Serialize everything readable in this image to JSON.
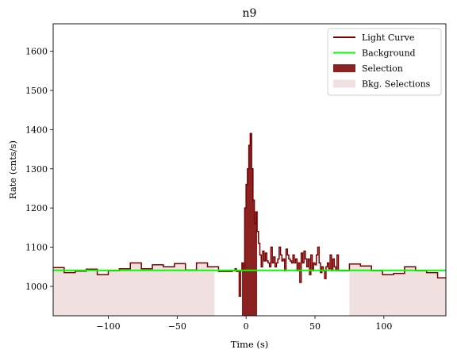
{
  "chart_data": {
    "type": "line",
    "title": "n9",
    "xlabel": "Time (s)",
    "ylabel": "Rate (cnts/s)",
    "xlim": [
      -140,
      145
    ],
    "ylim": [
      925,
      1670
    ],
    "xticks": [
      -100,
      -50,
      0,
      50,
      100
    ],
    "xtick_labels": [
      "−100",
      "−50",
      "0",
      "50",
      "100"
    ],
    "yticks": [
      1000,
      1100,
      1200,
      1300,
      1400,
      1500,
      1600
    ],
    "ytick_labels": [
      "1000",
      "1100",
      "1200",
      "1300",
      "1400",
      "1500",
      "1600"
    ],
    "grid": false,
    "legend_position": "top-right",
    "colors": {
      "light_curve": "#7a0000",
      "background": "#00ff00",
      "selection": "#8b2222",
      "bkg_selection": "#f0e0e0"
    },
    "legend": [
      {
        "label": "Light Curve",
        "kind": "line",
        "color": "#7a0000"
      },
      {
        "label": "Background",
        "kind": "line",
        "color": "#00ff00"
      },
      {
        "label": "Selection",
        "kind": "patch",
        "color": "#8b2222"
      },
      {
        "label": "Bkg. Selections",
        "kind": "patch",
        "color": "#f0e0e0"
      }
    ],
    "bkg_selections": [
      [
        -140,
        -23
      ],
      [
        75,
        145
      ]
    ],
    "selection": [
      -3,
      8
    ],
    "background_level": 1041,
    "light_curve": [
      [
        -140,
        1048
      ],
      [
        -132,
        1035
      ],
      [
        -124,
        1039
      ],
      [
        -116,
        1044
      ],
      [
        -108,
        1030
      ],
      [
        -100,
        1040
      ],
      [
        -92,
        1045
      ],
      [
        -84,
        1060
      ],
      [
        -76,
        1045
      ],
      [
        -68,
        1055
      ],
      [
        -60,
        1050
      ],
      [
        -52,
        1058
      ],
      [
        -44,
        1042
      ],
      [
        -36,
        1060
      ],
      [
        -28,
        1050
      ],
      [
        -20,
        1038
      ],
      [
        -12,
        1038
      ],
      [
        -10,
        1040
      ],
      [
        -8,
        1045
      ],
      [
        -7,
        1038
      ],
      [
        -6,
        1040
      ],
      [
        -5,
        975
      ],
      [
        -4,
        1040
      ],
      [
        -3,
        1060
      ],
      [
        -2,
        1040
      ],
      [
        -1,
        1200
      ],
      [
        0,
        1260
      ],
      [
        1,
        1300
      ],
      [
        2,
        1360
      ],
      [
        3,
        1390
      ],
      [
        4,
        1300
      ],
      [
        5,
        1220
      ],
      [
        6,
        1160
      ],
      [
        7,
        1190
      ],
      [
        8,
        1140
      ],
      [
        9,
        1110
      ],
      [
        10,
        1080
      ],
      [
        11,
        1050
      ],
      [
        12,
        1090
      ],
      [
        13,
        1065
      ],
      [
        14,
        1085
      ],
      [
        15,
        1065
      ],
      [
        16,
        1060
      ],
      [
        17,
        1050
      ],
      [
        18,
        1100
      ],
      [
        19,
        1060
      ],
      [
        20,
        1075
      ],
      [
        21,
        1050
      ],
      [
        22,
        1060
      ],
      [
        23,
        1070
      ],
      [
        24,
        1100
      ],
      [
        25,
        1080
      ],
      [
        26,
        1065
      ],
      [
        27,
        1070
      ],
      [
        28,
        1040
      ],
      [
        29,
        1095
      ],
      [
        30,
        1080
      ],
      [
        31,
        1070
      ],
      [
        32,
        1065
      ],
      [
        33,
        1060
      ],
      [
        34,
        1080
      ],
      [
        35,
        1060
      ],
      [
        36,
        1070
      ],
      [
        37,
        1040
      ],
      [
        38,
        1060
      ],
      [
        39,
        1010
      ],
      [
        40,
        1085
      ],
      [
        41,
        1060
      ],
      [
        42,
        1090
      ],
      [
        43,
        1070
      ],
      [
        44,
        1050
      ],
      [
        45,
        1070
      ],
      [
        46,
        1030
      ],
      [
        47,
        1080
      ],
      [
        48,
        1040
      ],
      [
        49,
        1060
      ],
      [
        50,
        1055
      ],
      [
        51,
        1080
      ],
      [
        52,
        1100
      ],
      [
        53,
        1060
      ],
      [
        54,
        1035
      ],
      [
        55,
        1050
      ],
      [
        56,
        1040
      ],
      [
        57,
        1020
      ],
      [
        58,
        1050
      ],
      [
        59,
        1060
      ],
      [
        60,
        1045
      ],
      [
        61,
        1080
      ],
      [
        62,
        1040
      ],
      [
        63,
        1070
      ],
      [
        64,
        1050
      ],
      [
        65,
        1040
      ],
      [
        66,
        1080
      ],
      [
        67,
        1040
      ],
      [
        75,
        1057
      ],
      [
        83,
        1052
      ],
      [
        91,
        1040
      ],
      [
        99,
        1030
      ],
      [
        107,
        1033
      ],
      [
        115,
        1050
      ],
      [
        123,
        1040
      ],
      [
        131,
        1035
      ],
      [
        139,
        1022
      ],
      [
        147,
        1020
      ]
    ]
  }
}
